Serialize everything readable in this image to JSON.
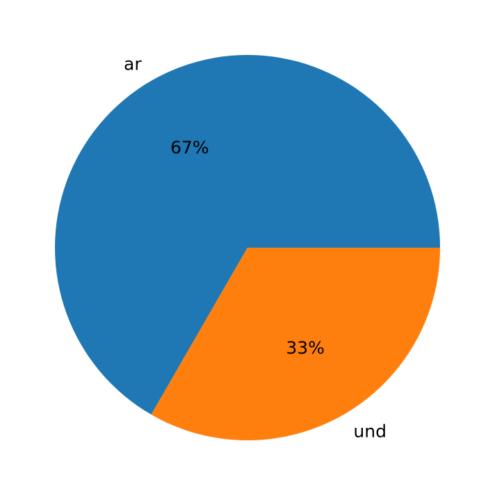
{
  "chart_data": {
    "type": "pie",
    "title": "",
    "categories": [
      "ar",
      "und"
    ],
    "values": [
      66.67,
      33.33
    ],
    "pct_labels": [
      "67%",
      "33%"
    ],
    "colors": [
      "#1f77b4",
      "#ff7f0e"
    ],
    "start_angle_deg": 0,
    "direction": "counterclockwise",
    "legend": "none"
  }
}
